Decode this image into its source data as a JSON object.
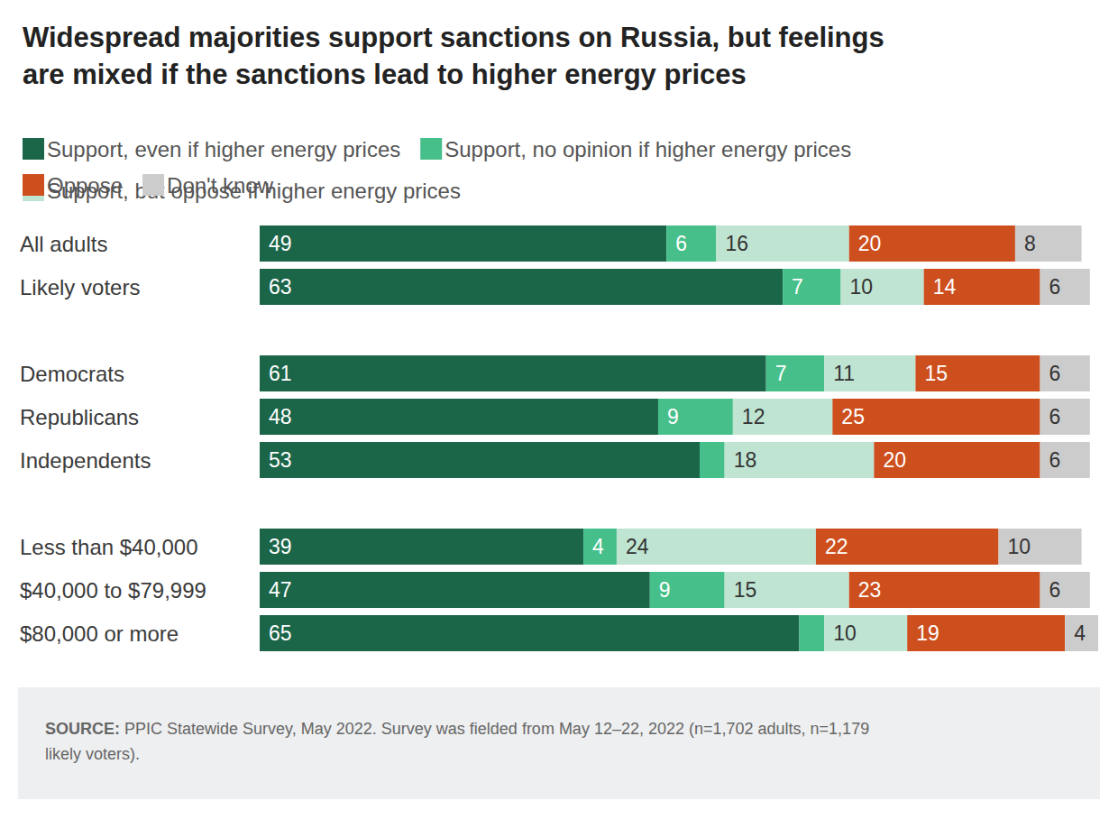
{
  "chart_data": {
    "type": "bar",
    "title": "Widespread majorities support sanctions on Russia, but feelings\nare mixed if the sanctions lead to higher energy prices",
    "orientation": "horizontal",
    "stacked": true,
    "data_labels": true,
    "tick_labels": "y",
    "grid": false,
    "legend": "top-left",
    "categories": [
      "All adults",
      "Likely voters",
      null,
      "Democrats",
      "Republicans",
      "Independents",
      null,
      "Less than $40,000",
      "$40,000 to $79,999",
      "$80,000 or more"
    ],
    "series": [
      {
        "name": "Support, even if higher energy prices",
        "color": "#1b6549",
        "values": [
          49,
          63,
          null,
          61,
          48,
          53,
          null,
          39,
          47,
          65
        ]
      },
      {
        "name": "Support, no opinion if higher energy prices",
        "color": "#46bf8a",
        "values": [
          6,
          7,
          null,
          7,
          9,
          3,
          null,
          4,
          9,
          3
        ],
        "value_labels": [
          "6",
          "7",
          null,
          "7",
          "9",
          null,
          null,
          "4",
          "9",
          null
        ]
      },
      {
        "name": "Support, but oppose if higher energy prices",
        "color": "#bfe4d2",
        "values": [
          16,
          10,
          null,
          11,
          12,
          18,
          null,
          24,
          15,
          10
        ]
      },
      {
        "name": "Oppose",
        "color": "#cd4f1e",
        "values": [
          20,
          14,
          null,
          15,
          25,
          20,
          null,
          22,
          23,
          19
        ]
      },
      {
        "name": "Don't know",
        "color": "#cccccc",
        "values": [
          8,
          6,
          null,
          6,
          6,
          6,
          null,
          10,
          6,
          4
        ]
      }
    ],
    "source_label": "SOURCE:",
    "source": "PPIC Statewide Survey, May 2022. Survey was fielded from May 12–22, 2022 (n=1,702 adults, n=1,179 likely voters)."
  }
}
